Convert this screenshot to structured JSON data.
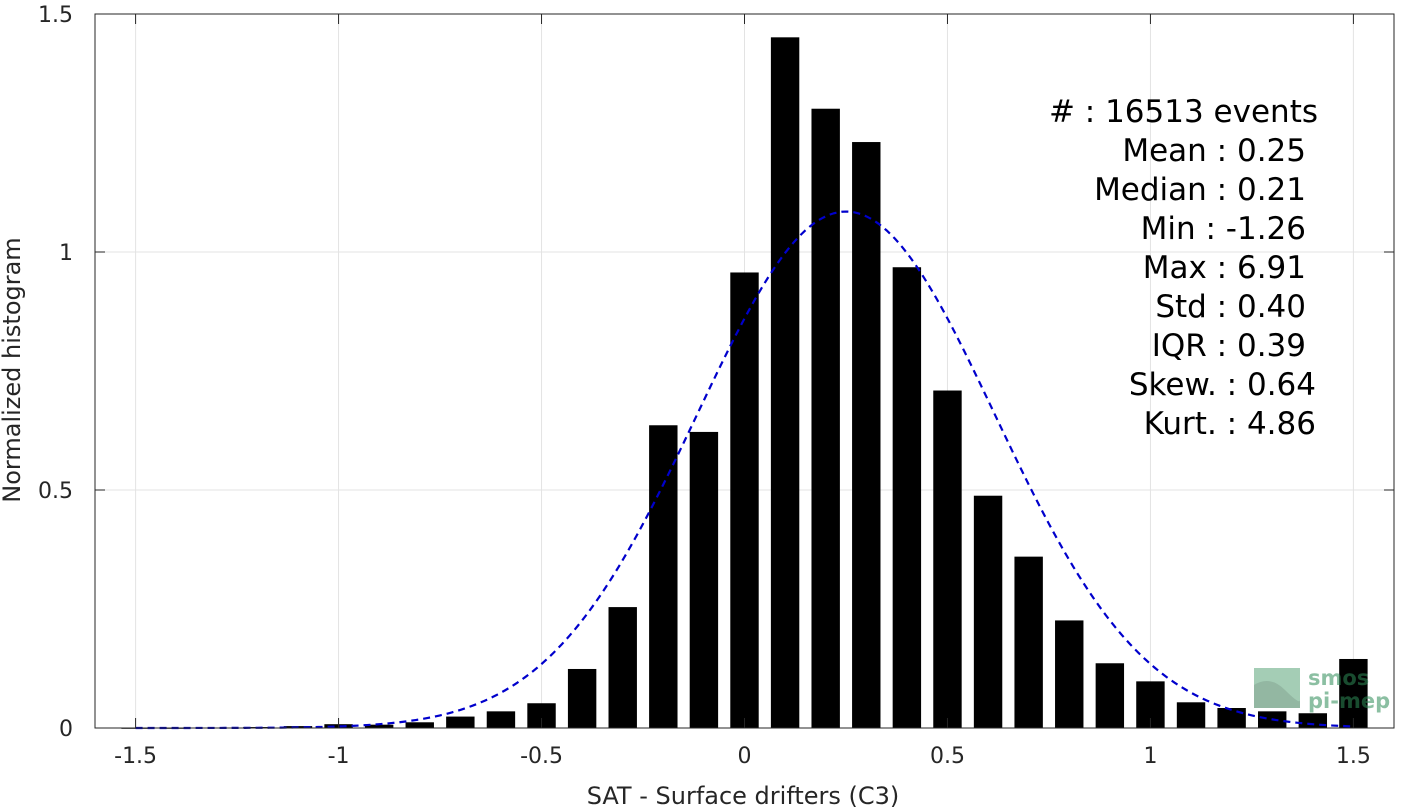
{
  "chart_data": {
    "type": "bar",
    "xlabel": "SAT - Surface drifters (C3)",
    "ylabel": "Normalized histogram",
    "xlim": [
      -1.6,
      1.6
    ],
    "ylim": [
      0,
      1.5
    ],
    "x_ticks": [
      "-1.5",
      "-1",
      "-0.5",
      "0",
      "0.5",
      "1",
      "1.5"
    ],
    "x_tick_values": [
      -1.5,
      -1,
      -0.5,
      0,
      0.5,
      1,
      1.5
    ],
    "y_ticks": [
      "0",
      "0.5",
      "1",
      "1.5"
    ],
    "y_tick_values": [
      0,
      0.5,
      1,
      1.5
    ],
    "grid": true,
    "bin_width": 0.1,
    "bar_width": 0.07,
    "bins": [
      {
        "x": -1.5,
        "y": 0.0
      },
      {
        "x": -1.4,
        "y": 0.0
      },
      {
        "x": -1.3,
        "y": 0.001
      },
      {
        "x": -1.2,
        "y": 0.002
      },
      {
        "x": -1.1,
        "y": 0.004
      },
      {
        "x": -1.0,
        "y": 0.008
      },
      {
        "x": -0.9,
        "y": 0.007
      },
      {
        "x": -0.8,
        "y": 0.012
      },
      {
        "x": -0.7,
        "y": 0.024
      },
      {
        "x": -0.6,
        "y": 0.035
      },
      {
        "x": -0.5,
        "y": 0.052
      },
      {
        "x": -0.4,
        "y": 0.124
      },
      {
        "x": -0.3,
        "y": 0.254
      },
      {
        "x": -0.2,
        "y": 0.636
      },
      {
        "x": -0.1,
        "y": 0.622
      },
      {
        "x": 0.0,
        "y": 0.957
      },
      {
        "x": 0.1,
        "y": 1.451
      },
      {
        "x": 0.2,
        "y": 1.301
      },
      {
        "x": 0.3,
        "y": 1.231
      },
      {
        "x": 0.4,
        "y": 0.968
      },
      {
        "x": 0.5,
        "y": 0.709
      },
      {
        "x": 0.6,
        "y": 0.488
      },
      {
        "x": 0.7,
        "y": 0.36
      },
      {
        "x": 0.8,
        "y": 0.226
      },
      {
        "x": 0.9,
        "y": 0.136
      },
      {
        "x": 1.0,
        "y": 0.098
      },
      {
        "x": 1.1,
        "y": 0.054
      },
      {
        "x": 1.2,
        "y": 0.042
      },
      {
        "x": 1.3,
        "y": 0.035
      },
      {
        "x": 1.4,
        "y": 0.031
      },
      {
        "x": 1.5,
        "y": 0.145
      }
    ],
    "fit": {
      "type": "gaussian",
      "mean": 0.25,
      "std": 0.367,
      "peak": 1.085,
      "color": "#0000cc",
      "style": "dashed"
    },
    "bar_color": "#000000",
    "stats": [
      {
        "label": "#  : 16513 events",
        "align_right_value": 1318
      },
      {
        "label": "Mean : 0.25",
        "align_right_value": 1306
      },
      {
        "label": "Median : 0.21",
        "align_right_value": 1306
      },
      {
        "label": "Min : -1.26",
        "align_right_value": 1306
      },
      {
        "label": "Max : 6.91",
        "align_right_value": 1306
      },
      {
        "label": "Std : 0.40",
        "align_right_value": 1306
      },
      {
        "label": "IQR : 0.39",
        "align_right_value": 1306
      },
      {
        "label": "Skew. : 0.64",
        "align_right_value": 1316
      },
      {
        "label": "Kurt. : 4.86",
        "align_right_value": 1316
      }
    ]
  },
  "logo": {
    "line1": "smos",
    "line2": "pi-mep",
    "color": "#2e8b57"
  }
}
